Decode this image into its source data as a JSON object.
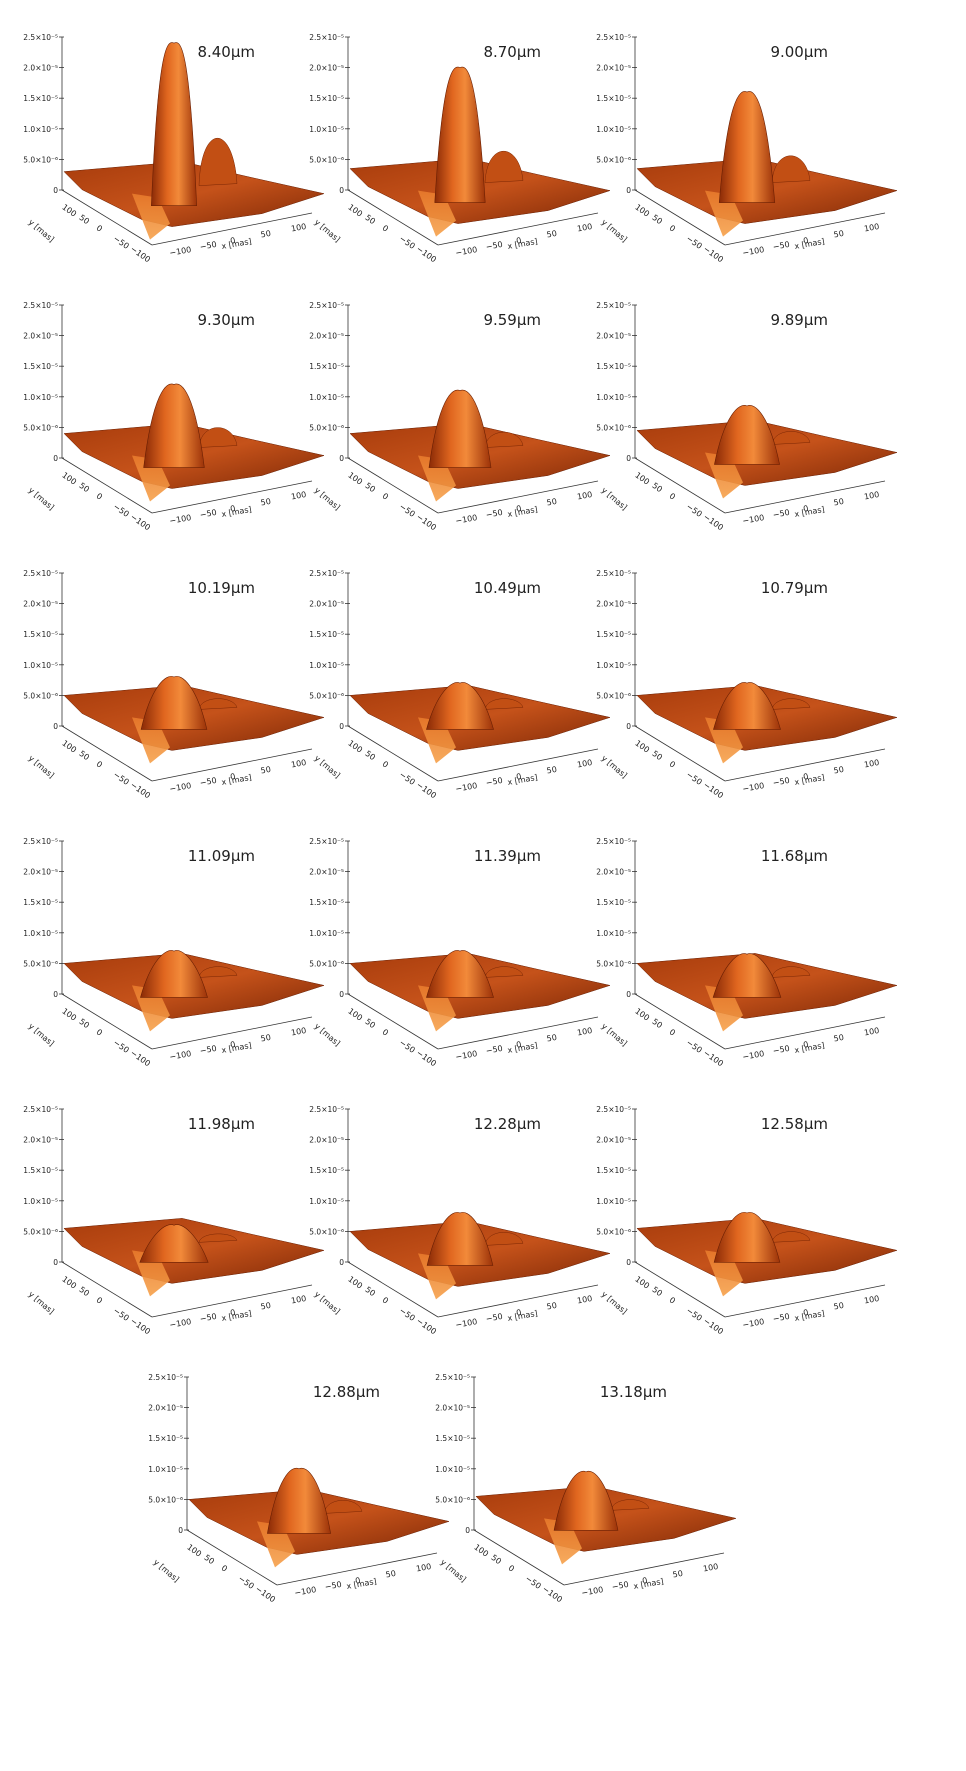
{
  "figure": {
    "panel_labels": [
      "8.40μm",
      "8.70μm",
      "9.00μm",
      "9.30μm",
      "9.59μm",
      "9.89μm",
      "10.19μm",
      "10.49μm",
      "10.79μm",
      "11.09μm",
      "11.39μm",
      "11.68μm",
      "11.98μm",
      "12.28μm",
      "12.58μm",
      "12.88μm",
      "13.18μm"
    ]
  },
  "chart_data": {
    "type": "surface",
    "panel_count": 17,
    "zaxis": {
      "ticks": [
        0,
        5e-06,
        1e-05,
        1.5e-05,
        2e-05,
        2.5e-05
      ],
      "tick_labels": [
        "0",
        "5.0×10⁻⁶",
        "1.0×10⁻⁵",
        "1.5×10⁻⁵",
        "2.0×10⁻⁵",
        "2.5×10⁻⁵"
      ],
      "range": [
        0,
        2.5e-05
      ]
    },
    "xaxis": {
      "label": "x [mas]",
      "ticks": [
        -100,
        -50,
        0,
        50,
        100
      ],
      "tick_labels": [
        "−100",
        "−50",
        "0",
        "50",
        "100"
      ]
    },
    "yaxis": {
      "label": "y [mas]",
      "ticks": [
        100,
        50,
        0,
        -50,
        -100
      ],
      "tick_labels": [
        "100",
        "50",
        "0",
        "−50",
        "−100"
      ]
    },
    "panels": [
      {
        "wavelength": "8.40μm",
        "central_peak": 2.4e-05,
        "side_peak": 1.1e-05,
        "plateau": 3e-06
      },
      {
        "wavelength": "8.70μm",
        "central_peak": 2e-05,
        "side_peak": 8e-06,
        "plateau": 3.5e-06
      },
      {
        "wavelength": "9.00μm",
        "central_peak": 1.6e-05,
        "side_peak": 7e-06,
        "plateau": 3.5e-06
      },
      {
        "wavelength": "9.30μm",
        "central_peak": 1.2e-05,
        "side_peak": 6e-06,
        "plateau": 4e-06
      },
      {
        "wavelength": "9.59μm",
        "central_peak": 1.1e-05,
        "side_peak": 5e-06,
        "plateau": 4e-06
      },
      {
        "wavelength": "9.89μm",
        "central_peak": 8.5e-06,
        "side_peak": 5e-06,
        "plateau": 4.5e-06
      },
      {
        "wavelength": "10.19μm",
        "central_peak": 8e-06,
        "side_peak": 5e-06,
        "plateau": 5e-06
      },
      {
        "wavelength": "10.49μm",
        "central_peak": 7e-06,
        "side_peak": 5e-06,
        "plateau": 5e-06
      },
      {
        "wavelength": "10.79μm",
        "central_peak": 7e-06,
        "side_peak": 5e-06,
        "plateau": 5e-06
      },
      {
        "wavelength": "11.09μm",
        "central_peak": 7e-06,
        "side_peak": 5e-06,
        "plateau": 5e-06
      },
      {
        "wavelength": "11.39μm",
        "central_peak": 7e-06,
        "side_peak": 5e-06,
        "plateau": 5e-06
      },
      {
        "wavelength": "11.68μm",
        "central_peak": 6.5e-06,
        "side_peak": 5e-06,
        "plateau": 5e-06
      },
      {
        "wavelength": "11.98μm",
        "central_peak": 6e-06,
        "side_peak": 5e-06,
        "plateau": 5.5e-06
      },
      {
        "wavelength": "12.28μm",
        "central_peak": 8e-06,
        "side_peak": 5.5e-06,
        "plateau": 5e-06
      },
      {
        "wavelength": "12.58μm",
        "central_peak": 8e-06,
        "side_peak": 5.5e-06,
        "plateau": 5.5e-06
      },
      {
        "wavelength": "12.88μm",
        "central_peak": 1e-05,
        "side_peak": 5.5e-06,
        "plateau": 5e-06
      },
      {
        "wavelength": "13.18μm",
        "central_peak": 9.5e-06,
        "side_peak": 5.5e-06,
        "plateau": 5.5e-06
      }
    ]
  }
}
